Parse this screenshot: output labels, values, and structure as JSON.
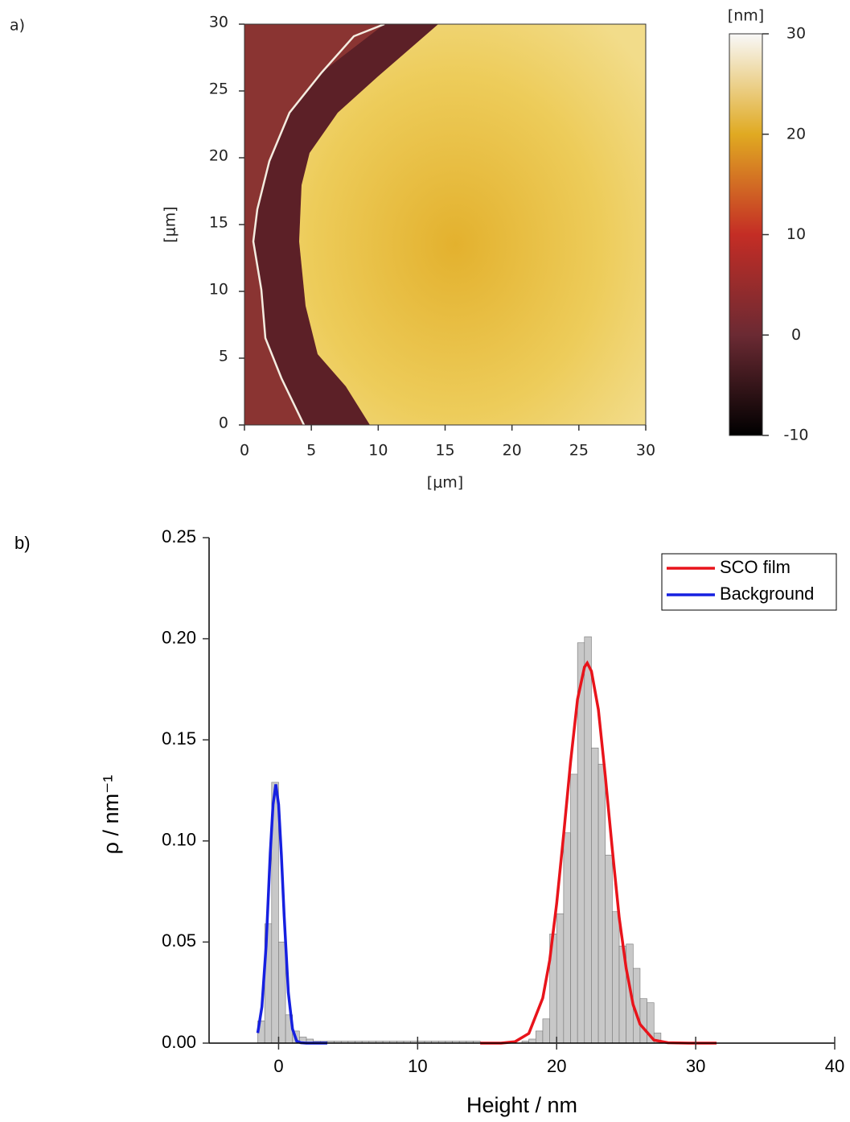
{
  "chart_data": [
    {
      "type": "heatmap",
      "panel_label": "a)",
      "xlabel": "[μm]",
      "ylabel": "[μm]",
      "xlim": [
        0,
        30
      ],
      "ylim": [
        0,
        30
      ],
      "xticks": [
        0,
        5,
        10,
        15,
        20,
        25,
        30
      ],
      "yticks": [
        0,
        5,
        10,
        15,
        20,
        25,
        30
      ],
      "colorbar": {
        "label": "[nm]",
        "lim": [
          -10,
          30
        ],
        "ticks": [
          -10,
          0,
          10,
          20,
          30
        ],
        "colors": [
          "#000000",
          "#6b2a33",
          "#c42d25",
          "#e0aa22",
          "#f8f8f8"
        ]
      }
    },
    {
      "type": "histogram",
      "panel_label": "b)",
      "xlabel": "Height / nm",
      "ylabel": "ρ / nm⁻¹",
      "xlim": [
        -5,
        40
      ],
      "ylim": [
        0,
        0.25
      ],
      "xticks": [
        0,
        10,
        20,
        30,
        40
      ],
      "yticks": [
        {
          "value": 0,
          "label": "0.00"
        },
        {
          "value": 0.05,
          "label": "0.05"
        },
        {
          "value": 0.1,
          "label": "0.10"
        },
        {
          "value": 0.15,
          "label": "0.15"
        },
        {
          "value": 0.2,
          "label": "0.20"
        },
        {
          "value": 0.25,
          "label": "0.25"
        }
      ],
      "color": "#c8c8c8",
      "legend": "upper right",
      "bins": [
        -1.5,
        -1,
        -0.5,
        0,
        0.5,
        1,
        1.5,
        2,
        2.5,
        3,
        3.5,
        4,
        4.5,
        5,
        5.5,
        6,
        6.5,
        7,
        7.5,
        8,
        8.5,
        9,
        9.5,
        10,
        10.5,
        11,
        11.5,
        12,
        12.5,
        13,
        13.5,
        14,
        14.5,
        15,
        15.5,
        16,
        16.5,
        17,
        17.5,
        18,
        18.5,
        19,
        19.5,
        20,
        20.5,
        21,
        21.5,
        22,
        22.5,
        23,
        23.5,
        24,
        24.5,
        25,
        25.5,
        26,
        26.5,
        27,
        27.5
      ],
      "counts": [
        0.011,
        0.059,
        0.129,
        0.05,
        0.014,
        0.006,
        0.003,
        0.002,
        0.001,
        0.001,
        0.001,
        0.001,
        0.001,
        0.001,
        0.001,
        0.001,
        0.001,
        0.001,
        0.001,
        0.001,
        0.001,
        0.001,
        0.001,
        0.001,
        0.001,
        0.001,
        0.001,
        0.001,
        0.001,
        0.001,
        0.001,
        0.001,
        0,
        0,
        0,
        0,
        0,
        0,
        0.001,
        0.002,
        0.006,
        0.012,
        0.054,
        0.064,
        0.104,
        0.133,
        0.198,
        0.201,
        0.146,
        0.138,
        0.093,
        0.065,
        0.048,
        0.049,
        0.037,
        0.022,
        0.02,
        0.005
      ],
      "series": [
        {
          "name": "SCO film",
          "color": "#e8141b",
          "x": [
            14.5,
            16,
            17,
            18,
            19,
            19.5,
            20,
            20.5,
            21,
            21.5,
            22,
            22.2,
            22.5,
            23,
            23.5,
            24,
            24.5,
            25,
            25.5,
            26,
            27,
            28,
            29.5,
            31.5
          ],
          "values": [
            0,
            0,
            0.0007,
            0.0048,
            0.0223,
            0.041,
            0.069,
            0.103,
            0.139,
            0.17,
            0.186,
            0.188,
            0.184,
            0.165,
            0.132,
            0.096,
            0.062,
            0.037,
            0.019,
            0.0093,
            0.0015,
            0.0002,
            0,
            0
          ]
        },
        {
          "name": "Background",
          "color": "#1620e0",
          "x": [
            -1.5,
            -1.2,
            -0.9,
            -0.6,
            -0.4,
            -0.2,
            0,
            0.2,
            0.4,
            0.7,
            1,
            1.3,
            1.6,
            2,
            2.5,
            3,
            3.5
          ],
          "values": [
            0.005,
            0.018,
            0.048,
            0.094,
            0.118,
            0.128,
            0.118,
            0.093,
            0.063,
            0.025,
            0.007,
            0.001,
            0.0002,
            0,
            0,
            0,
            0
          ]
        }
      ]
    }
  ]
}
